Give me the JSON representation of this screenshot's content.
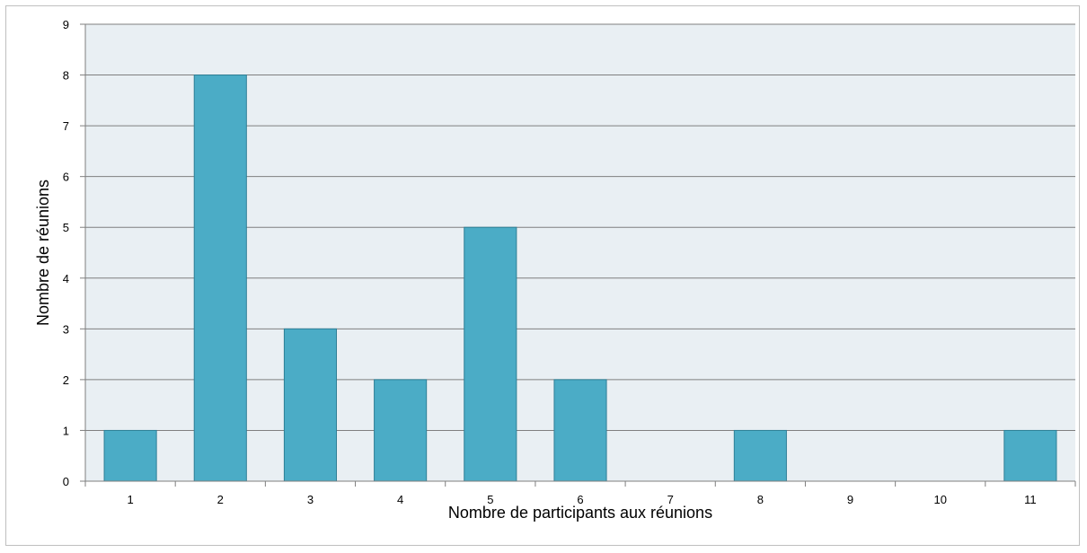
{
  "chart_data": {
    "type": "bar",
    "title": "",
    "xlabel": "Nombre de participants aux réunions",
    "ylabel": "Nombre de réunions",
    "categories": [
      "1",
      "2",
      "3",
      "4",
      "5",
      "6",
      "7",
      "8",
      "9",
      "10",
      "11"
    ],
    "values": [
      1,
      8,
      3,
      2,
      5,
      2,
      0,
      1,
      0,
      0,
      1
    ],
    "ylim": [
      0,
      9
    ],
    "yticks": [
      0,
      1,
      2,
      3,
      4,
      5,
      6,
      7,
      8,
      9
    ],
    "grid": true,
    "legend": "none",
    "colors": {
      "bar_fill": "#4bacc6",
      "bar_stroke": "#2e7f96",
      "plot_background": "#e9eff3",
      "grid": "#7f7f7f",
      "axis": "#7f7f7f"
    }
  }
}
